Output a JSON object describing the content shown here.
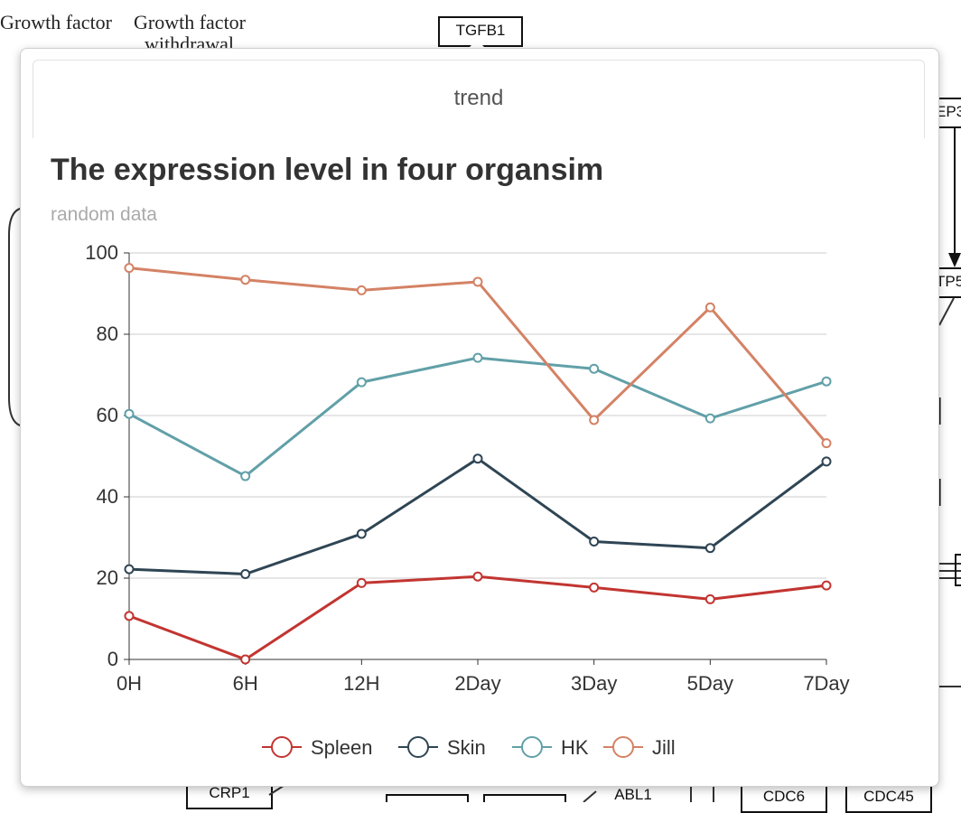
{
  "background": {
    "labels": [
      "Growth factor",
      "Growth factor",
      "withdrawal",
      "TGFB1",
      "EP3",
      "TP5",
      "CRP1",
      "ABL1",
      "CDC6",
      "CDC45"
    ]
  },
  "popover": {
    "tab_title": "trend"
  },
  "chart_data": {
    "type": "line",
    "title": "The expression level in four organsim",
    "subtitle": "random data",
    "categories": [
      "0H",
      "6H",
      "12H",
      "2Day",
      "3Day",
      "5Day",
      "7Day"
    ],
    "yticks": [
      "0",
      "20",
      "40",
      "60",
      "80",
      "100"
    ],
    "ylim": [
      0,
      100
    ],
    "grid": true,
    "legend_position": "bottom",
    "series": [
      {
        "name": "Spleen",
        "color": "#c23531",
        "values": [
          10.7,
          0,
          18.8,
          20.4,
          17.7,
          14.8,
          18.2
        ]
      },
      {
        "name": "Skin",
        "color": "#2f4554",
        "values": [
          22.2,
          21.0,
          30.9,
          49.4,
          29.0,
          27.4,
          48.7
        ]
      },
      {
        "name": "HK",
        "color": "#61a0a8",
        "values": [
          60.4,
          45.1,
          68.2,
          74.2,
          71.5,
          59.3,
          68.4
        ]
      },
      {
        "name": "Jill",
        "color": "#d48265",
        "values": [
          96.3,
          93.4,
          90.8,
          92.9,
          58.9,
          86.6,
          53.2
        ]
      }
    ]
  }
}
